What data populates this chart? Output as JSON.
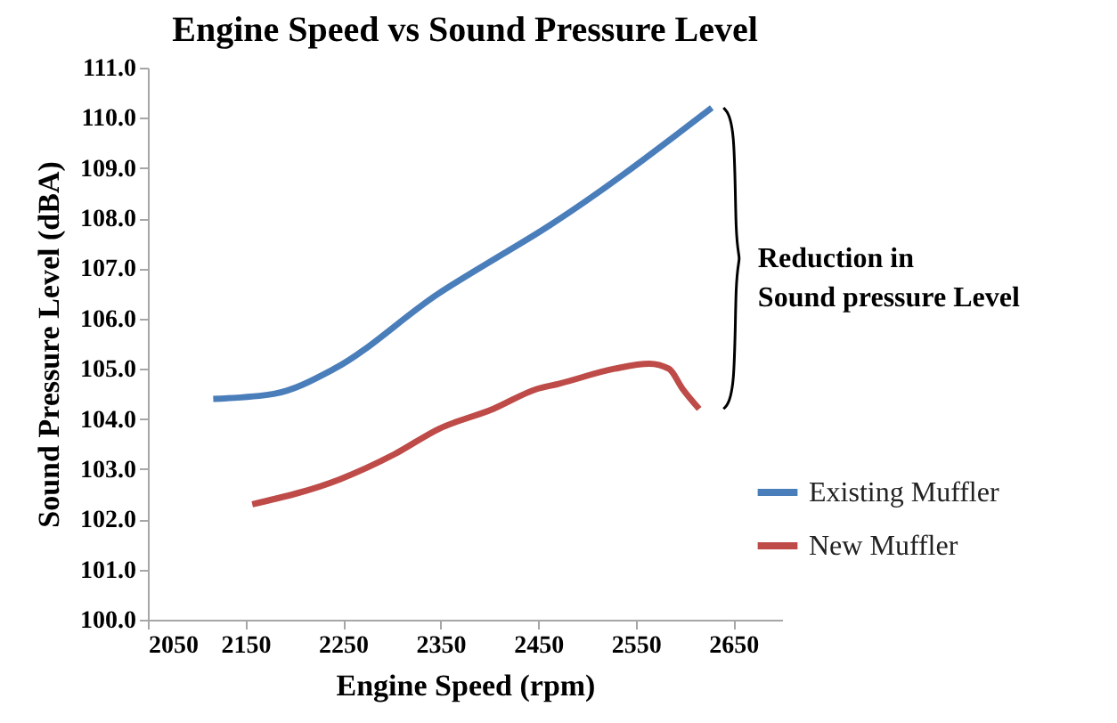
{
  "chart_data": {
    "type": "line",
    "title": "Engine Speed vs Sound Pressure Level",
    "xlabel": "Engine Speed (rpm)",
    "ylabel": "Sound Pressure Level (dBA)",
    "series": [
      {
        "name": "Existing Muffler",
        "color": "#4a7ebb",
        "x": [
          2117,
          2179,
          2241,
          2348,
          2415,
          2449,
          2628
        ],
        "values": [
          104.4,
          104.5,
          105.0,
          106.5,
          107.3,
          107.7,
          110.2
        ]
      },
      {
        "name": "New Muffler",
        "color": "#be4b48",
        "x": [
          2157,
          2247,
          2303,
          2348,
          2404,
          2449,
          2471,
          2528,
          2564,
          2584,
          2598,
          2615
        ],
        "values": [
          102.3,
          102.8,
          103.3,
          103.8,
          104.2,
          104.6,
          104.7,
          105.0,
          105.1,
          105.0,
          104.6,
          104.2
        ]
      }
    ],
    "xlim": [
      2050,
      2700
    ],
    "xticks": [
      2050,
      2150,
      2250,
      2350,
      2450,
      2550,
      2650
    ],
    "ylim": [
      100,
      111
    ],
    "yticks": [
      {
        "value": 100,
        "label": "100.0"
      },
      {
        "value": 101,
        "label": "101.0"
      },
      {
        "value": 102,
        "label": "102.0"
      },
      {
        "value": 103,
        "label": "103.0"
      },
      {
        "value": 104,
        "label": "104.0"
      },
      {
        "value": 105,
        "label": "105.0"
      },
      {
        "value": 106,
        "label": "106.0"
      },
      {
        "value": 107,
        "label": "107.0"
      },
      {
        "value": 108,
        "label": "108.0"
      },
      {
        "value": 109,
        "label": "109.0"
      },
      {
        "value": 110,
        "label": "110.0"
      },
      {
        "value": 111,
        "label": "111.0"
      }
    ],
    "annotations": [
      "Reduction in\nSound pressure Level"
    ],
    "grid": false,
    "legend": "right",
    "marker": "none",
    "line_style": "solid"
  }
}
